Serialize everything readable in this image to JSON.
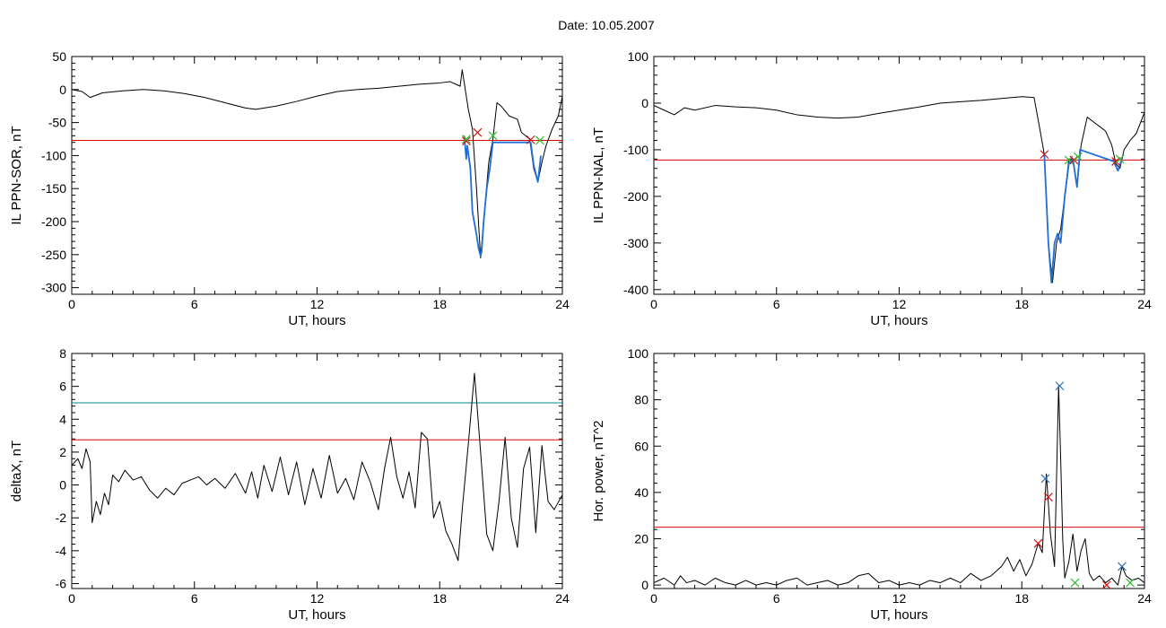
{
  "header": {
    "date_label": "Date:",
    "date_value": "10.05.2007"
  },
  "colors": {
    "trace": "#000000",
    "threshold": "#e00000",
    "secondary_threshold": "#008b8b",
    "substorm": "#1f6fd6",
    "onset_marker": "#d01010",
    "end_marker": "#2fbf2f",
    "peak_marker": "#2f6fb0"
  },
  "chart_data": [
    {
      "id": "il-sor",
      "type": "line",
      "xlabel": "UT, hours",
      "ylabel": "IL PPN-SOR, nT",
      "xlim": [
        0,
        24
      ],
      "ylim": [
        -310,
        50
      ],
      "xticks": [
        0,
        6,
        12,
        18,
        24
      ],
      "yticks": [
        -300,
        -250,
        -200,
        -150,
        -100,
        -50,
        0,
        50
      ],
      "grid": false,
      "series": [
        {
          "x": [
            0,
            0.5,
            0.9,
            1.5,
            2.5,
            3.5,
            4.5,
            5.5,
            6.5,
            7.5,
            8.5,
            9,
            10,
            11,
            12,
            13,
            14,
            15,
            16,
            17,
            18,
            18.5,
            19.0,
            19.1,
            19.3,
            19.4,
            19.6,
            19.8,
            20.0,
            20.2,
            20.4,
            20.6,
            20.8,
            21.0,
            21.4,
            21.8,
            22.0,
            22.4,
            22.6,
            22.8,
            23.0,
            23.2,
            23.5,
            23.8,
            24
          ],
          "y": [
            0,
            -3,
            -12,
            -5,
            -2,
            0,
            -2,
            -6,
            -12,
            -20,
            -28,
            -30,
            -25,
            -18,
            -10,
            -3,
            0,
            2,
            5,
            8,
            10,
            12,
            5,
            30,
            -10,
            -30,
            -60,
            -150,
            -255,
            -180,
            -110,
            -75,
            -20,
            -25,
            -40,
            -45,
            -65,
            -75,
            -120,
            -140,
            -110,
            -85,
            -60,
            -40,
            -10
          ]
        },
        {
          "role": "substorm",
          "x": [
            19.2,
            19.3,
            19.35,
            19.5,
            19.6,
            19.8,
            19.9,
            20.0,
            20.05,
            20.15,
            20.3,
            20.45,
            20.6,
            22.45,
            22.6,
            22.8,
            22.95
          ],
          "y": [
            -70,
            -105,
            -85,
            -120,
            -185,
            -220,
            -240,
            -252,
            -245,
            -200,
            -150,
            -120,
            -80,
            -80,
            -115,
            -140,
            -100
          ]
        }
      ],
      "thresholds": [
        {
          "y": -77,
          "color": "#e00000"
        }
      ],
      "markers": [
        {
          "x": 19.3,
          "y": -78,
          "color": "#d01010"
        },
        {
          "x": 19.85,
          "y": -65,
          "color": "#d01010"
        },
        {
          "x": 20.6,
          "y": -70,
          "color": "#2fbf2f"
        },
        {
          "x": 19.3,
          "y": -75,
          "color": "#2fbf2f"
        },
        {
          "x": 22.45,
          "y": -76,
          "color": "#d01010"
        },
        {
          "x": 22.9,
          "y": -77,
          "color": "#2fbf2f"
        }
      ]
    },
    {
      "id": "il-nal",
      "type": "line",
      "xlabel": "UT, hours",
      "ylabel": "IL PPN-NAL, nT",
      "xlim": [
        0,
        24
      ],
      "ylim": [
        -410,
        100
      ],
      "xticks": [
        0,
        6,
        12,
        18,
        24
      ],
      "yticks": [
        -400,
        -300,
        -200,
        -100,
        0,
        100
      ],
      "grid": false,
      "series": [
        {
          "x": [
            0,
            0.5,
            1,
            1.5,
            2,
            3,
            4,
            5,
            6,
            7,
            8,
            9,
            10,
            11,
            12,
            13,
            14,
            15,
            16,
            17,
            18,
            18.6,
            18.9,
            19.1,
            19.3,
            19.5,
            19.7,
            19.9,
            20.1,
            20.3,
            20.5,
            20.7,
            20.9,
            21.2,
            21.5,
            21.8,
            22.1,
            22.4,
            22.6,
            22.8,
            23.0,
            23.3,
            23.6,
            24
          ],
          "y": [
            -5,
            -15,
            -25,
            -10,
            -15,
            -5,
            -8,
            -10,
            -15,
            -25,
            -30,
            -32,
            -30,
            -22,
            -15,
            -8,
            0,
            3,
            6,
            10,
            14,
            12,
            -60,
            -110,
            -300,
            -385,
            -300,
            -270,
            -200,
            -120,
            -120,
            -180,
            -90,
            -30,
            -40,
            -50,
            -60,
            -90,
            -130,
            -140,
            -100,
            -80,
            -65,
            -20
          ]
        },
        {
          "role": "substorm",
          "x": [
            19.1,
            19.3,
            19.45,
            19.6,
            19.75,
            19.9,
            20.1,
            20.3,
            20.5,
            20.7,
            20.85,
            22.5,
            22.7,
            22.9
          ],
          "y": [
            -110,
            -300,
            -385,
            -300,
            -280,
            -300,
            -200,
            -130,
            -120,
            -180,
            -100,
            -125,
            -145,
            -120
          ]
        }
      ],
      "thresholds": [
        {
          "y": -122,
          "color": "#e00000"
        }
      ],
      "markers": [
        {
          "x": 19.1,
          "y": -110,
          "color": "#d01010"
        },
        {
          "x": 20.3,
          "y": -122,
          "color": "#2fbf2f"
        },
        {
          "x": 20.55,
          "y": -122,
          "color": "#d01010"
        },
        {
          "x": 20.75,
          "y": -115,
          "color": "#2fbf2f"
        },
        {
          "x": 22.6,
          "y": -125,
          "color": "#d01010"
        },
        {
          "x": 22.8,
          "y": -120,
          "color": "#2fbf2f"
        }
      ]
    },
    {
      "id": "deltax",
      "type": "line",
      "xlabel": "UT, hours",
      "ylabel": "deltaX, nT",
      "xlim": [
        0,
        24
      ],
      "ylim": [
        -6.3,
        8
      ],
      "xticks": [
        0,
        6,
        12,
        18,
        24
      ],
      "yticks": [
        -6,
        -4,
        -2,
        0,
        2,
        4,
        6,
        8
      ],
      "grid": false,
      "series": [
        {
          "x": [
            0,
            0.3,
            0.5,
            0.7,
            0.9,
            1.0,
            1.2,
            1.4,
            1.6,
            1.8,
            2.0,
            2.3,
            2.6,
            3.0,
            3.4,
            3.8,
            4.2,
            4.6,
            5.0,
            5.4,
            5.8,
            6.2,
            6.6,
            7.0,
            7.5,
            8.0,
            8.5,
            8.8,
            9.1,
            9.4,
            9.8,
            10.2,
            10.6,
            11.0,
            11.4,
            11.8,
            12.2,
            12.6,
            13.0,
            13.4,
            13.8,
            14.2,
            14.6,
            15.0,
            15.3,
            15.6,
            15.9,
            16.2,
            16.5,
            16.8,
            17.1,
            17.4,
            17.7,
            18.0,
            18.3,
            18.6,
            18.9,
            19.1,
            19.4,
            19.7,
            20.0,
            20.3,
            20.6,
            20.9,
            21.2,
            21.5,
            21.8,
            22.1,
            22.4,
            22.7,
            23.0,
            23.3,
            23.6,
            24
          ],
          "y": [
            1.2,
            1.6,
            1.0,
            2.2,
            1.4,
            -2.3,
            -1.0,
            -1.8,
            -0.5,
            -1.2,
            0.6,
            0.2,
            0.9,
            0.3,
            0.5,
            -0.3,
            -0.8,
            -0.2,
            -0.6,
            0.1,
            0.3,
            0.5,
            0.0,
            0.4,
            -0.2,
            0.7,
            -0.5,
            0.8,
            -0.8,
            1.2,
            -0.4,
            1.7,
            -0.6,
            1.4,
            -1.2,
            1.0,
            -0.8,
            1.8,
            -0.5,
            0.4,
            -0.9,
            1.4,
            0.2,
            -1.5,
            1.0,
            2.9,
            0.5,
            -0.8,
            0.8,
            -1.4,
            3.2,
            2.8,
            -2.0,
            -1.0,
            -2.8,
            -3.6,
            -4.6,
            -1.5,
            2.5,
            6.8,
            2.0,
            -3.0,
            -4.0,
            -1.0,
            2.9,
            -2.0,
            -3.8,
            1.0,
            2.3,
            -2.9,
            2.4,
            -1.0,
            -1.5,
            -0.6
          ]
        }
      ],
      "thresholds": [
        {
          "y": 5.0,
          "color": "#008b8b"
        },
        {
          "y": 2.75,
          "color": "#e00000"
        }
      ],
      "markers": []
    },
    {
      "id": "hor-power",
      "type": "line",
      "xlabel": "UT, hours",
      "ylabel": "Hor. power, nT^2",
      "xlim": [
        0,
        24
      ],
      "ylim": [
        -1.5,
        100
      ],
      "xticks": [
        0,
        6,
        12,
        18,
        24
      ],
      "yticks": [
        0,
        20,
        40,
        60,
        80,
        100
      ],
      "grid": false,
      "series": [
        {
          "x": [
            0,
            0.5,
            1.0,
            1.3,
            1.6,
            2.0,
            2.5,
            3.0,
            3.5,
            4.0,
            4.5,
            5.0,
            5.5,
            6.0,
            6.5,
            7.0,
            7.5,
            8.0,
            8.5,
            9.0,
            9.5,
            10.0,
            10.5,
            11.0,
            11.5,
            12.0,
            12.5,
            13.0,
            13.5,
            14.0,
            14.5,
            15.0,
            15.5,
            16.0,
            16.5,
            17.0,
            17.3,
            17.6,
            17.9,
            18.2,
            18.5,
            18.8,
            19.0,
            19.2,
            19.4,
            19.6,
            19.8,
            19.9,
            20.0,
            20.1,
            20.3,
            20.5,
            20.7,
            20.9,
            21.1,
            21.3,
            21.5,
            21.8,
            22.1,
            22.4,
            22.7,
            22.9,
            23.1,
            23.4,
            23.7,
            24
          ],
          "y": [
            1,
            3,
            0,
            4,
            1,
            2,
            0,
            3,
            1,
            0,
            2,
            0,
            1,
            0,
            2,
            3,
            0,
            1,
            2,
            0,
            1,
            4,
            5,
            1,
            2,
            0,
            1,
            0,
            2,
            1,
            3,
            1,
            5,
            2,
            4,
            8,
            12,
            6,
            11,
            4,
            9,
            18,
            14,
            48,
            22,
            8,
            86,
            55,
            20,
            3,
            10,
            22,
            6,
            15,
            20,
            5,
            2,
            4,
            1,
            3,
            0,
            8,
            4,
            2,
            3,
            1
          ]
        }
      ],
      "thresholds": [
        {
          "y": 25,
          "color": "#e00000"
        }
      ],
      "markers": [
        {
          "x": 18.8,
          "y": 18,
          "color": "#d01010"
        },
        {
          "x": 19.15,
          "y": 46,
          "color": "#2f6fb0"
        },
        {
          "x": 19.3,
          "y": 38,
          "color": "#d01010"
        },
        {
          "x": 19.85,
          "y": 86,
          "color": "#2f6fb0"
        },
        {
          "x": 20.6,
          "y": 1,
          "color": "#2fbf2f"
        },
        {
          "x": 22.15,
          "y": 0,
          "color": "#d01010"
        },
        {
          "x": 22.9,
          "y": 8,
          "color": "#2f6fb0"
        },
        {
          "x": 23.3,
          "y": 1,
          "color": "#2fbf2f"
        }
      ]
    }
  ]
}
